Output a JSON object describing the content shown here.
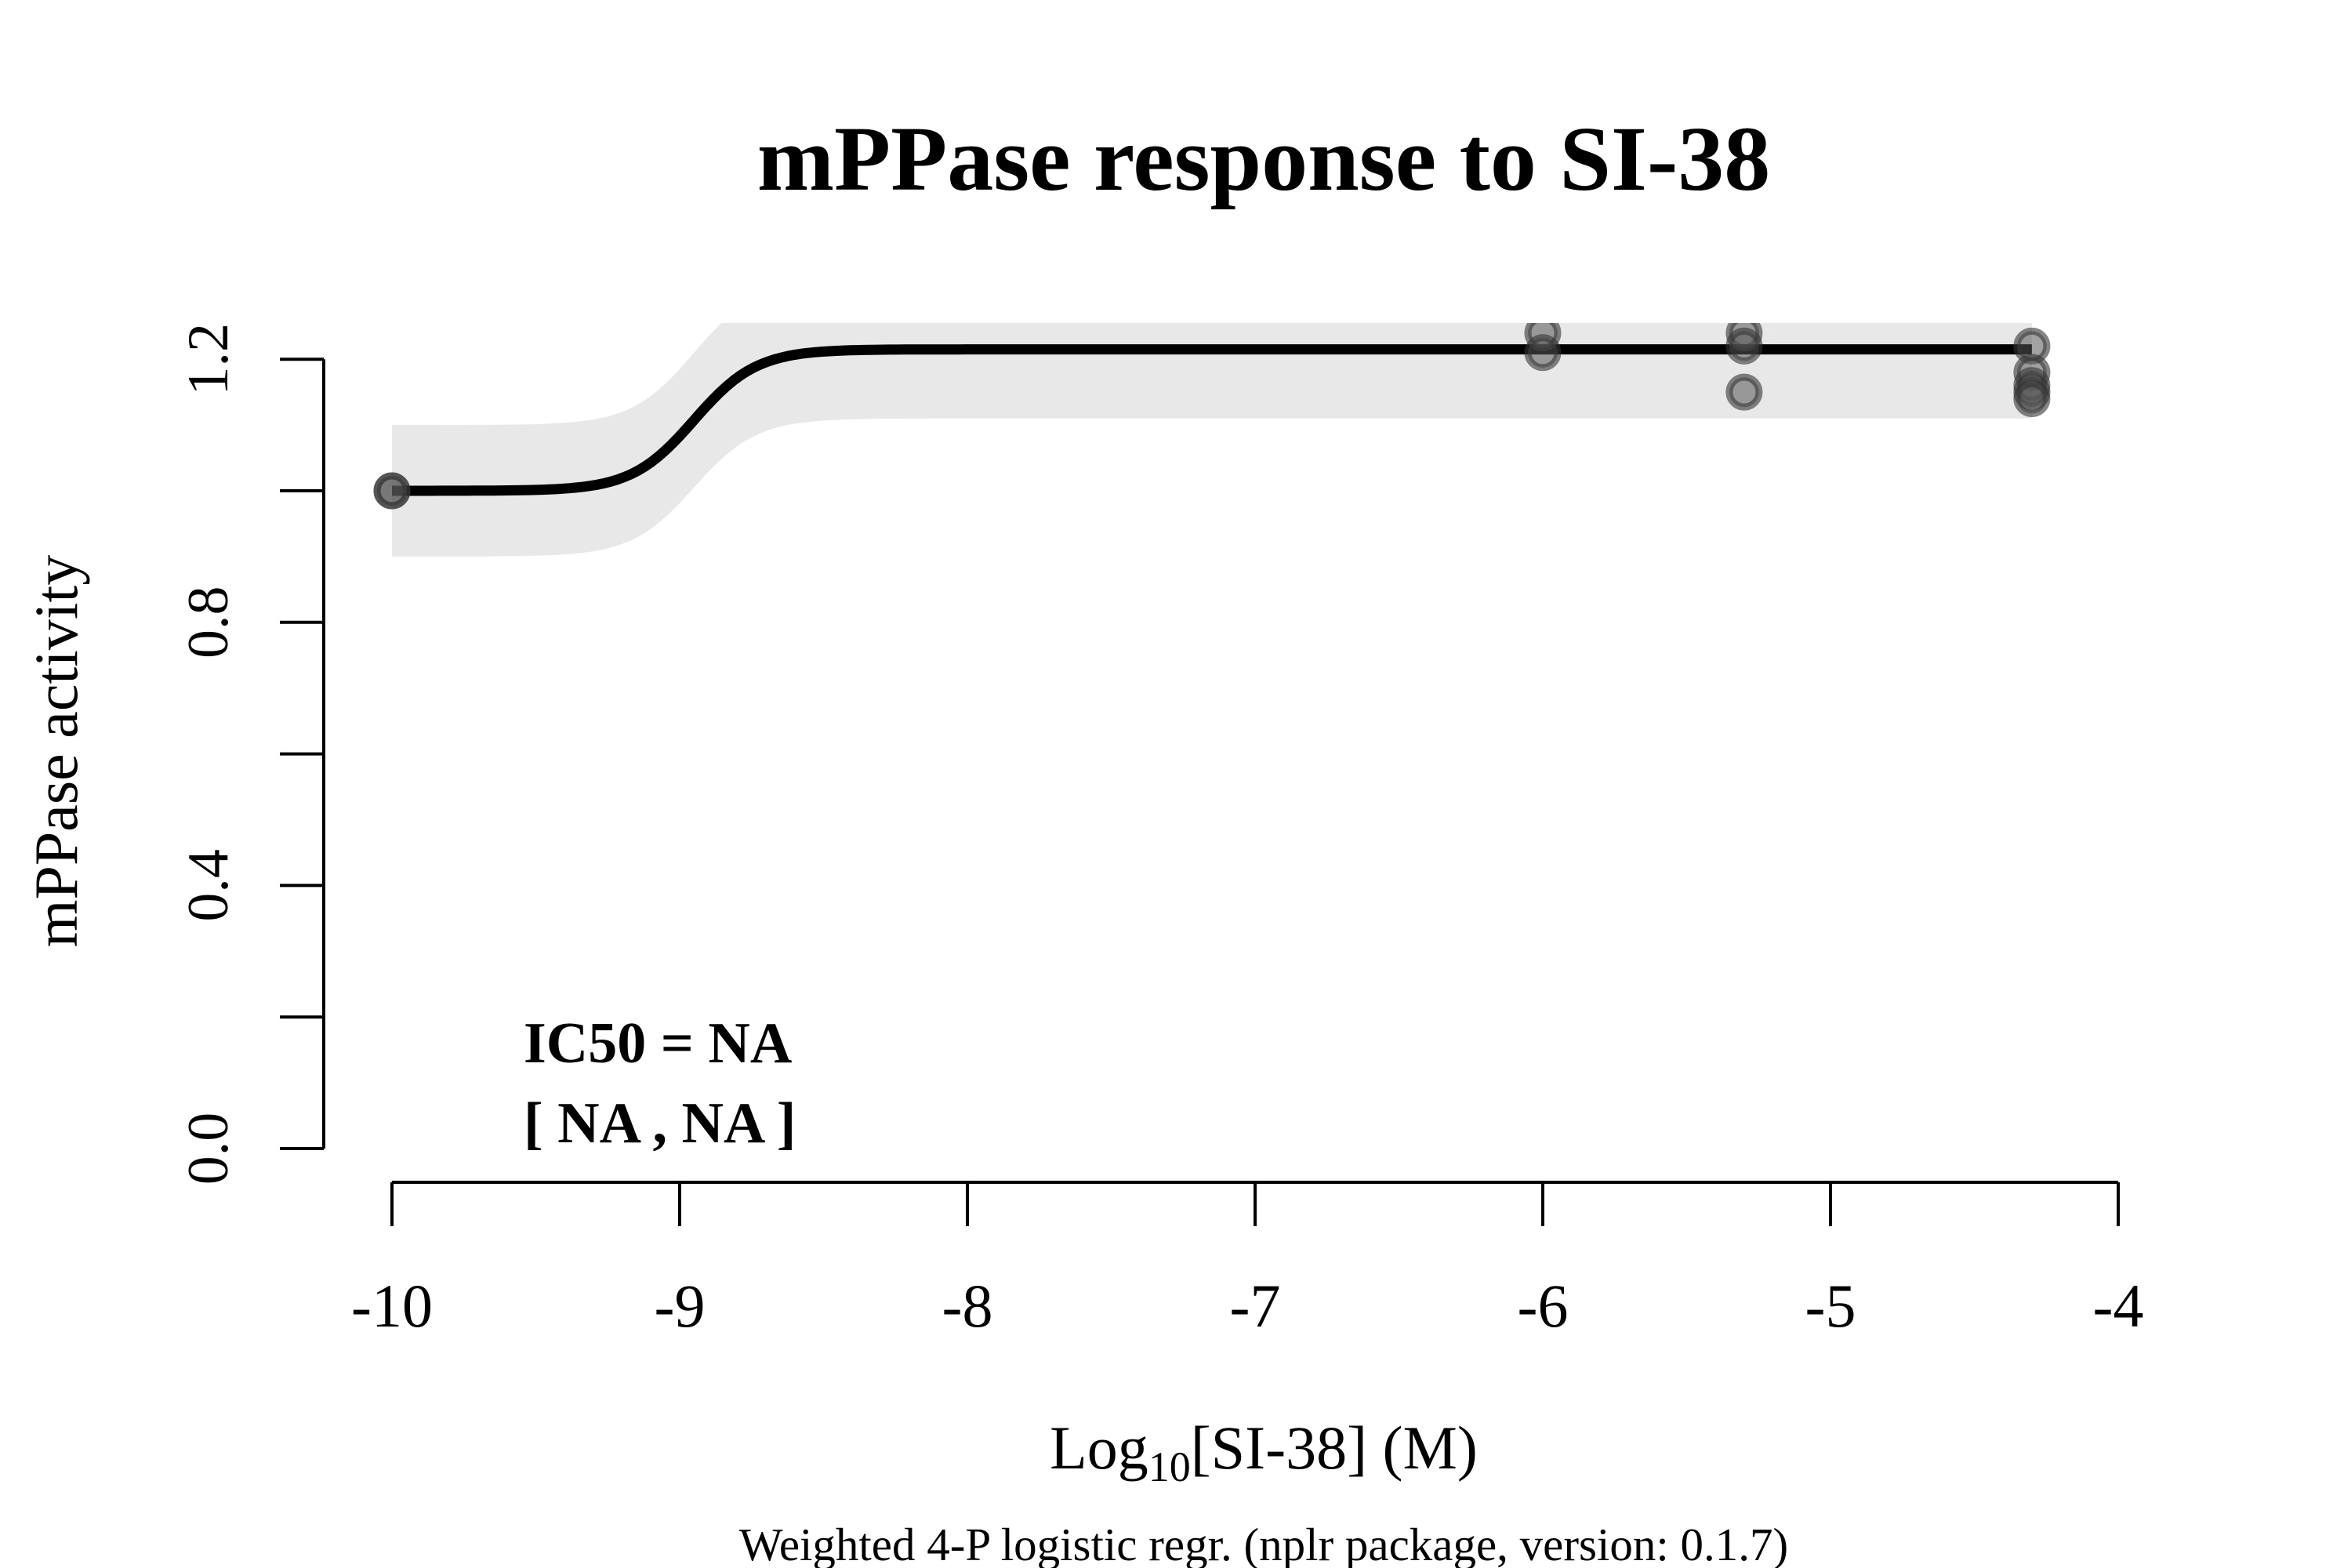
{
  "chart_data": {
    "type": "scatter",
    "title": "mPPase response to SI-38",
    "xlabel_main": "Log",
    "xlabel_sub": "10",
    "xlabel_rest": "[SI-38] (M)",
    "ylabel": "mPPase activity",
    "footer": "Weighted 4-P logistic regr. (nplr package, version: 0.1.7)",
    "annotation_line1": "IC50 = NA",
    "annotation_line2": "[ NA , NA ]",
    "xlim": [
      -10,
      -4
    ],
    "ylim": [
      0,
      1.2
    ],
    "x_ticks": [
      -10,
      -9,
      -8,
      -7,
      -6,
      -5,
      -4
    ],
    "x_tick_labels": [
      "-10",
      "-9",
      "-8",
      "-7",
      "-6",
      "-5",
      "-4"
    ],
    "y_ticks": [
      0,
      0.2,
      0.4,
      0.6,
      0.8,
      1.0,
      1.2
    ],
    "y_tick_labels": [
      "0.0",
      "",
      "0.4",
      "",
      "0.8",
      "",
      "1.2"
    ],
    "points": [
      {
        "x": -10,
        "y": 1.0
      },
      {
        "x": -10,
        "y": 1.0
      },
      {
        "x": -6,
        "y": 1.24
      },
      {
        "x": -6,
        "y": 1.21
      },
      {
        "x": -5.3,
        "y": 1.24
      },
      {
        "x": -5.3,
        "y": 1.22
      },
      {
        "x": -5.3,
        "y": 1.15
      },
      {
        "x": -4.3,
        "y": 1.22
      },
      {
        "x": -4.3,
        "y": 1.18
      },
      {
        "x": -4.3,
        "y": 1.16
      },
      {
        "x": -4.3,
        "y": 1.15
      },
      {
        "x": -4.3,
        "y": 1.14
      }
    ],
    "fit_curve": {
      "model": "4-parameter logistic",
      "bottom": 1.0,
      "top": 1.215,
      "log_ec50": -8.95,
      "hill_slope": 4.0,
      "x_range": [
        -10,
        -4.3
      ],
      "color": "#000000"
    },
    "confidence_band": {
      "bottom_low": 0.9,
      "bottom_high": 1.1,
      "top_low": 1.11,
      "top_high": 1.32,
      "color": "#e8e8e8"
    },
    "point_color": "#555555",
    "grid": false
  }
}
